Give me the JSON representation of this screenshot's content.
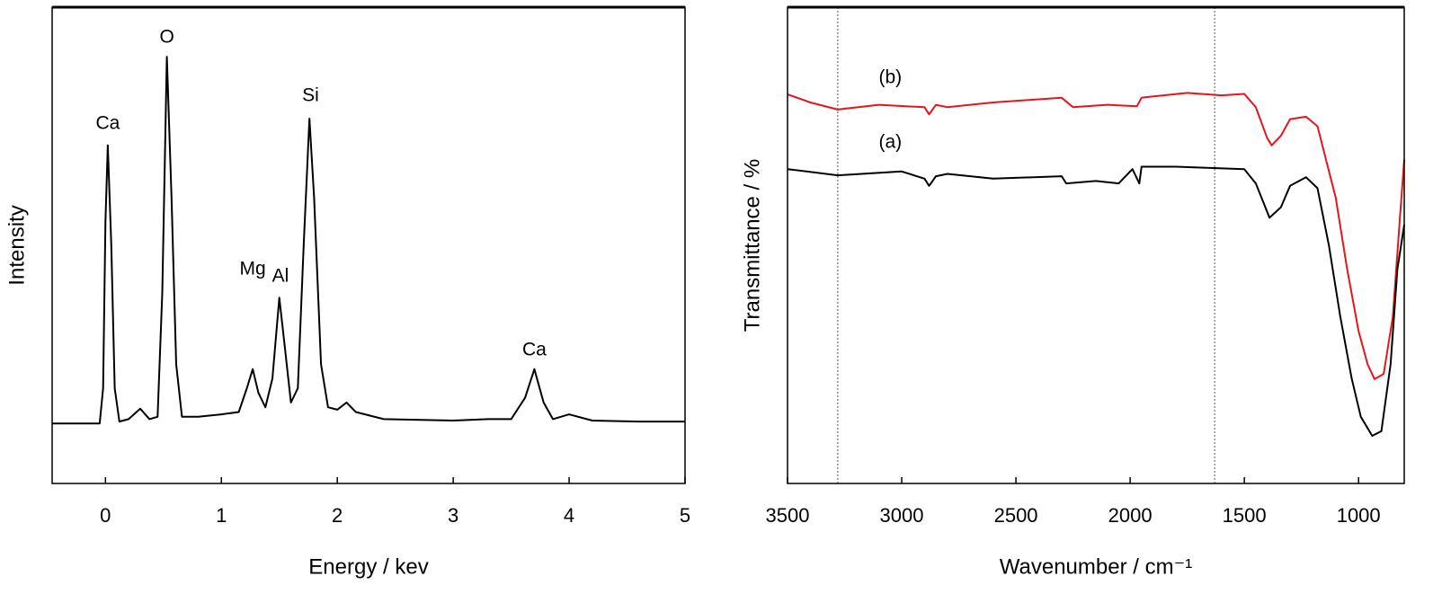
{
  "chart_data": [
    {
      "type": "line",
      "xlabel": "Energy / kev",
      "ylabel": "Intensity",
      "xlim": [
        -0.46,
        5
      ],
      "xticks": [
        0,
        1,
        2,
        3,
        4,
        5
      ],
      "ylim": [
        0,
        100
      ],
      "series": [
        {
          "color": "#000000",
          "x": [
            -0.46,
            -0.05,
            -0.02,
            0.0,
            0.02,
            0.05,
            0.08,
            0.12,
            0.2,
            0.3,
            0.38,
            0.45,
            0.49,
            0.53,
            0.57,
            0.61,
            0.66,
            0.8,
            1.0,
            1.15,
            1.22,
            1.27,
            1.32,
            1.38,
            1.44,
            1.5,
            1.55,
            1.6,
            1.66,
            1.71,
            1.76,
            1.8,
            1.86,
            1.92,
            2.0,
            2.08,
            2.16,
            2.4,
            3.0,
            3.3,
            3.5,
            3.62,
            3.7,
            3.78,
            3.86,
            4.0,
            4.2,
            4.6,
            5.0
          ],
          "values": [
            12.6,
            12.6,
            20,
            55,
            71,
            50,
            20,
            13,
            13.5,
            15.7,
            13.5,
            14,
            40,
            89.6,
            60,
            25,
            14,
            14,
            14.5,
            15,
            20,
            24,
            19,
            16,
            22,
            39,
            28,
            17,
            20,
            50,
            76.6,
            60,
            25,
            16,
            15.5,
            17,
            15,
            13.5,
            13.2,
            13.5,
            13.5,
            18,
            24,
            17,
            13.5,
            14.5,
            13.2,
            13,
            13
          ]
        }
      ],
      "annotations": [
        {
          "text": "Ca",
          "x": 0.02,
          "y": 75.5
        },
        {
          "text": "O",
          "x": 0.53,
          "y": 93.6
        },
        {
          "text": "Mg",
          "x": 1.27,
          "y": 44.9
        },
        {
          "text": "Al",
          "x": 1.51,
          "y": 43.4
        },
        {
          "text": "Si",
          "x": 1.77,
          "y": 81.3
        },
        {
          "text": "Ca",
          "x": 3.7,
          "y": 27.9
        }
      ]
    },
    {
      "type": "line",
      "xlabel": "Wavenumber / cm⁻¹",
      "ylabel": "Transmittance / %",
      "xlim": [
        3500,
        800
      ],
      "xticks": [
        3500,
        3000,
        2500,
        2000,
        1500,
        1000
      ],
      "ylim": [
        0,
        100
      ],
      "vlines": [
        3280,
        1630
      ],
      "series": [
        {
          "name": "(b)",
          "color": "#e8141c",
          "label_at": [
            3050,
            85.1
          ],
          "x": [
            3500,
            3400,
            3280,
            3100,
            2900,
            2880,
            2850,
            2800,
            2600,
            2300,
            2250,
            2100,
            1970,
            1950,
            1750,
            1600,
            1500,
            1450,
            1400,
            1380,
            1340,
            1300,
            1230,
            1180,
            1100,
            1050,
            1000,
            960,
            930,
            890,
            850,
            820,
            800
          ],
          "values": [
            81.7,
            80,
            78.5,
            79.5,
            79,
            77.5,
            79.5,
            79,
            80,
            81,
            79,
            79.5,
            79.2,
            81,
            82,
            81.5,
            81.8,
            79,
            72.5,
            71,
            73,
            76.5,
            77,
            75,
            60,
            45,
            32,
            25,
            21.9,
            23,
            35,
            55,
            68
          ]
        },
        {
          "name": "(a)",
          "color": "#000000",
          "label_at": [
            3050,
            71.5
          ],
          "x": [
            3500,
            3280,
            3000,
            2900,
            2880,
            2850,
            2800,
            2600,
            2300,
            2280,
            2150,
            2050,
            1990,
            1960,
            1950,
            1800,
            1500,
            1450,
            1400,
            1390,
            1340,
            1300,
            1230,
            1180,
            1130,
            1080,
            1030,
            990,
            940,
            900,
            860,
            830,
            800
          ],
          "values": [
            66,
            64.7,
            65.5,
            64,
            62.5,
            64.5,
            65,
            64,
            64.5,
            63,
            63.5,
            63,
            66,
            63,
            66.5,
            66.5,
            66,
            63,
            57,
            55.8,
            58,
            62.5,
            64.3,
            62,
            50,
            35,
            22,
            14,
            10,
            11,
            25,
            45,
            54.3
          ]
        }
      ]
    }
  ]
}
